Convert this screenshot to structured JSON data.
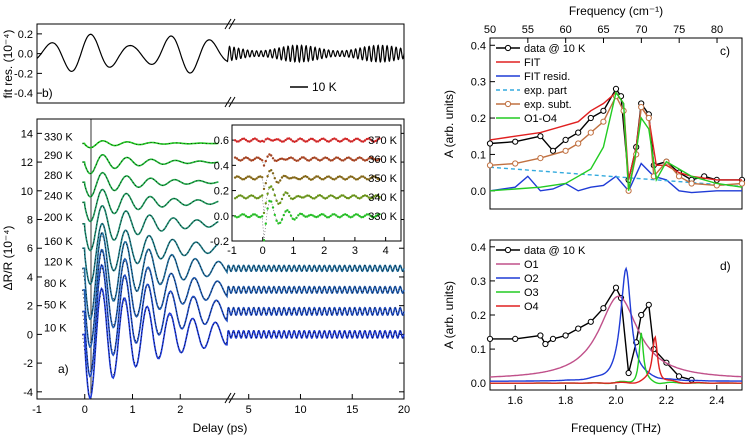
{
  "colors": {
    "axis": "#000000",
    "trace_green": "#22cc22",
    "trace_blue": "#1f3bd6",
    "fit_dots": "#000000",
    "fit_red": "#e02020",
    "purple": "#c0508a",
    "cyan": "#33aadd",
    "brown": "#c07040"
  },
  "chart_data": [
    {
      "panel": "b",
      "type": "line",
      "panel_label": "b)",
      "ylabel": "fit res. (10⁻⁴)",
      "ylim": [
        -0.5,
        0.3
      ],
      "yticks": [
        "0.2",
        "0.0",
        "-0.2",
        "-0.4"
      ],
      "ytick_values": [
        0.2,
        0.0,
        -0.2,
        -0.4
      ],
      "legend": "10 K",
      "series": [
        {
          "name": "fit residual 10 K",
          "amplitude_early": 0.2,
          "amplitude_late": 0.07
        }
      ]
    },
    {
      "panel": "a",
      "type": "line",
      "panel_label": "a)",
      "xlabel": "Delay (ps)",
      "ylabel": "ΔR/R (10⁻⁴)",
      "xlim_left": [
        -1,
        3
      ],
      "xlim_right": [
        3,
        20
      ],
      "xticks": [
        "-1",
        "0",
        "1",
        "2",
        "5",
        "10",
        "15",
        "20"
      ],
      "xtick_values": [
        -1,
        0,
        1,
        2,
        5,
        10,
        15,
        20
      ],
      "ylim": [
        -4.5,
        15
      ],
      "yticks": [
        "-4",
        "-2",
        "0",
        "2",
        "4",
        "6",
        "8",
        "10",
        "12",
        "14"
      ],
      "ytick_values": [
        -4,
        -2,
        0,
        2,
        4,
        6,
        8,
        10,
        12,
        14
      ],
      "series": [
        {
          "name": "330 K",
          "offset": 13.3,
          "amplitude": 0.3
        },
        {
          "name": "290 K",
          "offset": 12.0,
          "amplitude": 0.8
        },
        {
          "name": "280 K",
          "offset": 10.6,
          "amplitude": 1.0
        },
        {
          "name": "240 K",
          "offset": 9.2,
          "amplitude": 1.3
        },
        {
          "name": "200 K",
          "offset": 7.7,
          "amplitude": 1.8
        },
        {
          "name": "160 K",
          "offset": 6.0,
          "amplitude": 2.4
        },
        {
          "name": "120 K",
          "offset": 4.6,
          "amplitude": 3.4
        },
        {
          "name": "80 K",
          "offset": 3.1,
          "amplitude": 3.8
        },
        {
          "name": "50 K",
          "offset": 1.6,
          "amplitude": 4.3
        },
        {
          "name": "10 K",
          "offset": 0.0,
          "amplitude": 4.2
        }
      ]
    },
    {
      "panel": "a-inset",
      "type": "scatter",
      "xlim": [
        -1,
        4.5
      ],
      "xticks": [
        "-1",
        "0",
        "1",
        "2",
        "3",
        "4"
      ],
      "xtick_values": [
        -1,
        0,
        1,
        2,
        3,
        4
      ],
      "ylim": [
        -0.2,
        0.72
      ],
      "yticks": [
        "0.6",
        "0.4",
        "0.2",
        "0.0",
        "-0.2"
      ],
      "ytick_values": [
        0.6,
        0.4,
        0.2,
        0.0,
        -0.2
      ],
      "series": [
        {
          "name": "370 K",
          "offset": 0.6,
          "dip": 0.02,
          "color": "#e02020"
        },
        {
          "name": "360 K",
          "offset": 0.45,
          "dip": 0.05,
          "color": "#b0401a"
        },
        {
          "name": "350 K",
          "offset": 0.3,
          "dip": 0.1,
          "color": "#8a6a10"
        },
        {
          "name": "340 K",
          "offset": 0.15,
          "dip": 0.17,
          "color": "#6a9a10"
        },
        {
          "name": "330 K",
          "offset": 0.0,
          "dip": 0.25,
          "color": "#22cc22"
        }
      ]
    },
    {
      "panel": "c",
      "type": "line",
      "panel_label": "c)",
      "xlabel_top": "Frequency (cm⁻¹)",
      "xlim_top": [
        50,
        83.3
      ],
      "xticks_top": [
        "50",
        "55",
        "60",
        "65",
        "70",
        "75",
        "80"
      ],
      "xtick_values_top": [
        50,
        55,
        60,
        65,
        70,
        75,
        80
      ],
      "xlim": [
        1.5,
        2.5
      ],
      "ylabel": "A (arb. units)",
      "ylim": [
        -0.05,
        0.42
      ],
      "yticks": [
        "0.4",
        "0.3",
        "0.2",
        "0.1",
        "0.0"
      ],
      "ytick_values": [
        0.4,
        0.3,
        0.2,
        0.1,
        0.0
      ],
      "legend": [
        "data @ 10 K",
        "FIT",
        "FIT resid.",
        "exp. part",
        "exp. subt.",
        "O1-O4"
      ],
      "series": [
        {
          "name": "data @ 10 K",
          "x": [
            1.5,
            1.6,
            1.7,
            1.75,
            1.8,
            1.85,
            1.9,
            1.95,
            2.0,
            2.02,
            2.05,
            2.08,
            2.1,
            2.13,
            2.15,
            2.2,
            2.25,
            2.3,
            2.35,
            2.4,
            2.5
          ],
          "y": [
            0.13,
            0.135,
            0.15,
            0.11,
            0.14,
            0.16,
            0.2,
            0.22,
            0.28,
            0.26,
            0.03,
            0.12,
            0.24,
            0.21,
            0.07,
            0.08,
            0.05,
            0.03,
            0.04,
            0.03,
            0.03
          ]
        },
        {
          "name": "FIT",
          "x": [
            1.5,
            1.6,
            1.7,
            1.8,
            1.85,
            1.9,
            1.95,
            2.0,
            2.03,
            2.05,
            2.08,
            2.1,
            2.13,
            2.16,
            2.2,
            2.25,
            2.3,
            2.4,
            2.5
          ],
          "y": [
            0.14,
            0.15,
            0.16,
            0.18,
            0.19,
            0.22,
            0.24,
            0.27,
            0.24,
            0.03,
            0.12,
            0.23,
            0.2,
            0.07,
            0.07,
            0.05,
            0.04,
            0.03,
            0.03
          ]
        },
        {
          "name": "FIT resid.",
          "x": [
            1.5,
            1.6,
            1.65,
            1.7,
            1.75,
            1.8,
            1.85,
            1.9,
            1.95,
            2.0,
            2.05,
            2.1,
            2.15,
            2.2,
            2.25,
            2.3,
            2.4,
            2.5
          ],
          "y": [
            0.0,
            0.01,
            0.04,
            0.0,
            0.005,
            0.02,
            0.0,
            0.01,
            0.015,
            0.04,
            0.0,
            0.075,
            0.04,
            0.03,
            0.0,
            -0.005,
            0.0,
            0.0
          ]
        },
        {
          "name": "exp. part",
          "x": [
            1.5,
            2.5
          ],
          "y": [
            0.065,
            0.012
          ]
        },
        {
          "name": "exp. subt.",
          "x": [
            1.5,
            1.6,
            1.7,
            1.8,
            1.85,
            1.9,
            1.95,
            2.0,
            2.03,
            2.05,
            2.08,
            2.1,
            2.13,
            2.15,
            2.2,
            2.25,
            2.3,
            2.4,
            2.5
          ],
          "y": [
            0.07,
            0.075,
            0.09,
            0.11,
            0.13,
            0.16,
            0.19,
            0.26,
            0.22,
            0.0,
            0.1,
            0.23,
            0.2,
            0.04,
            0.08,
            0.04,
            0.02,
            0.015,
            0.02
          ]
        },
        {
          "name": "O1-O4",
          "x": [
            1.5,
            1.6,
            1.7,
            1.8,
            1.85,
            1.9,
            1.95,
            2.0,
            2.03,
            2.05,
            2.08,
            2.1,
            2.13,
            2.16,
            2.2,
            2.25,
            2.3,
            2.4,
            2.5
          ],
          "y": [
            0.0,
            0.005,
            0.01,
            0.02,
            0.04,
            0.06,
            0.12,
            0.27,
            0.24,
            0.0,
            0.11,
            0.2,
            0.17,
            0.03,
            0.08,
            0.06,
            0.04,
            0.02,
            0.01
          ]
        }
      ]
    },
    {
      "panel": "d",
      "type": "line",
      "panel_label": "d)",
      "xlabel": "Frequency (THz)",
      "xlim": [
        1.5,
        2.5
      ],
      "xticks": [
        "1.6",
        "1.8",
        "2.0",
        "2.2",
        "2.4"
      ],
      "xtick_values": [
        1.6,
        1.8,
        2.0,
        2.2,
        2.4
      ],
      "ylabel": "A (arb. units)",
      "ylim": [
        -0.02,
        0.42
      ],
      "yticks": [
        "0.4",
        "0.3",
        "0.2",
        "0.1",
        "0.0"
      ],
      "ytick_values": [
        0.4,
        0.3,
        0.2,
        0.1,
        0.0
      ],
      "legend": [
        "data @ 10 K",
        "O1",
        "O2",
        "O3",
        "O4"
      ],
      "series": [
        {
          "name": "data @ 10 K",
          "x": [
            1.5,
            1.6,
            1.7,
            1.72,
            1.75,
            1.8,
            1.85,
            1.9,
            1.95,
            2.0,
            2.02,
            2.05,
            2.08,
            2.1,
            2.13,
            2.15,
            2.2,
            2.25,
            2.3
          ],
          "y": [
            0.13,
            0.13,
            0.14,
            0.115,
            0.13,
            0.14,
            0.16,
            0.18,
            0.22,
            0.28,
            0.25,
            0.03,
            0.12,
            0.2,
            0.23,
            0.1,
            0.06,
            0.02,
            0.01
          ]
        },
        {
          "name": "O1",
          "lorentz": {
            "x0": 2.01,
            "amp": 0.245,
            "gamma": 0.19,
            "base": 0.01
          }
        },
        {
          "name": "O2",
          "lorentz": {
            "x0": 2.04,
            "amp": 0.33,
            "gamma": 0.05,
            "base": 0.005
          }
        },
        {
          "name": "O3",
          "lorentz": {
            "x0": 2.1,
            "amp": 0.145,
            "gamma": 0.02,
            "base": 0.0
          }
        },
        {
          "name": "O4",
          "lorentz": {
            "x0": 2.155,
            "amp": 0.14,
            "gamma": 0.025,
            "base": 0.0
          }
        }
      ]
    }
  ]
}
